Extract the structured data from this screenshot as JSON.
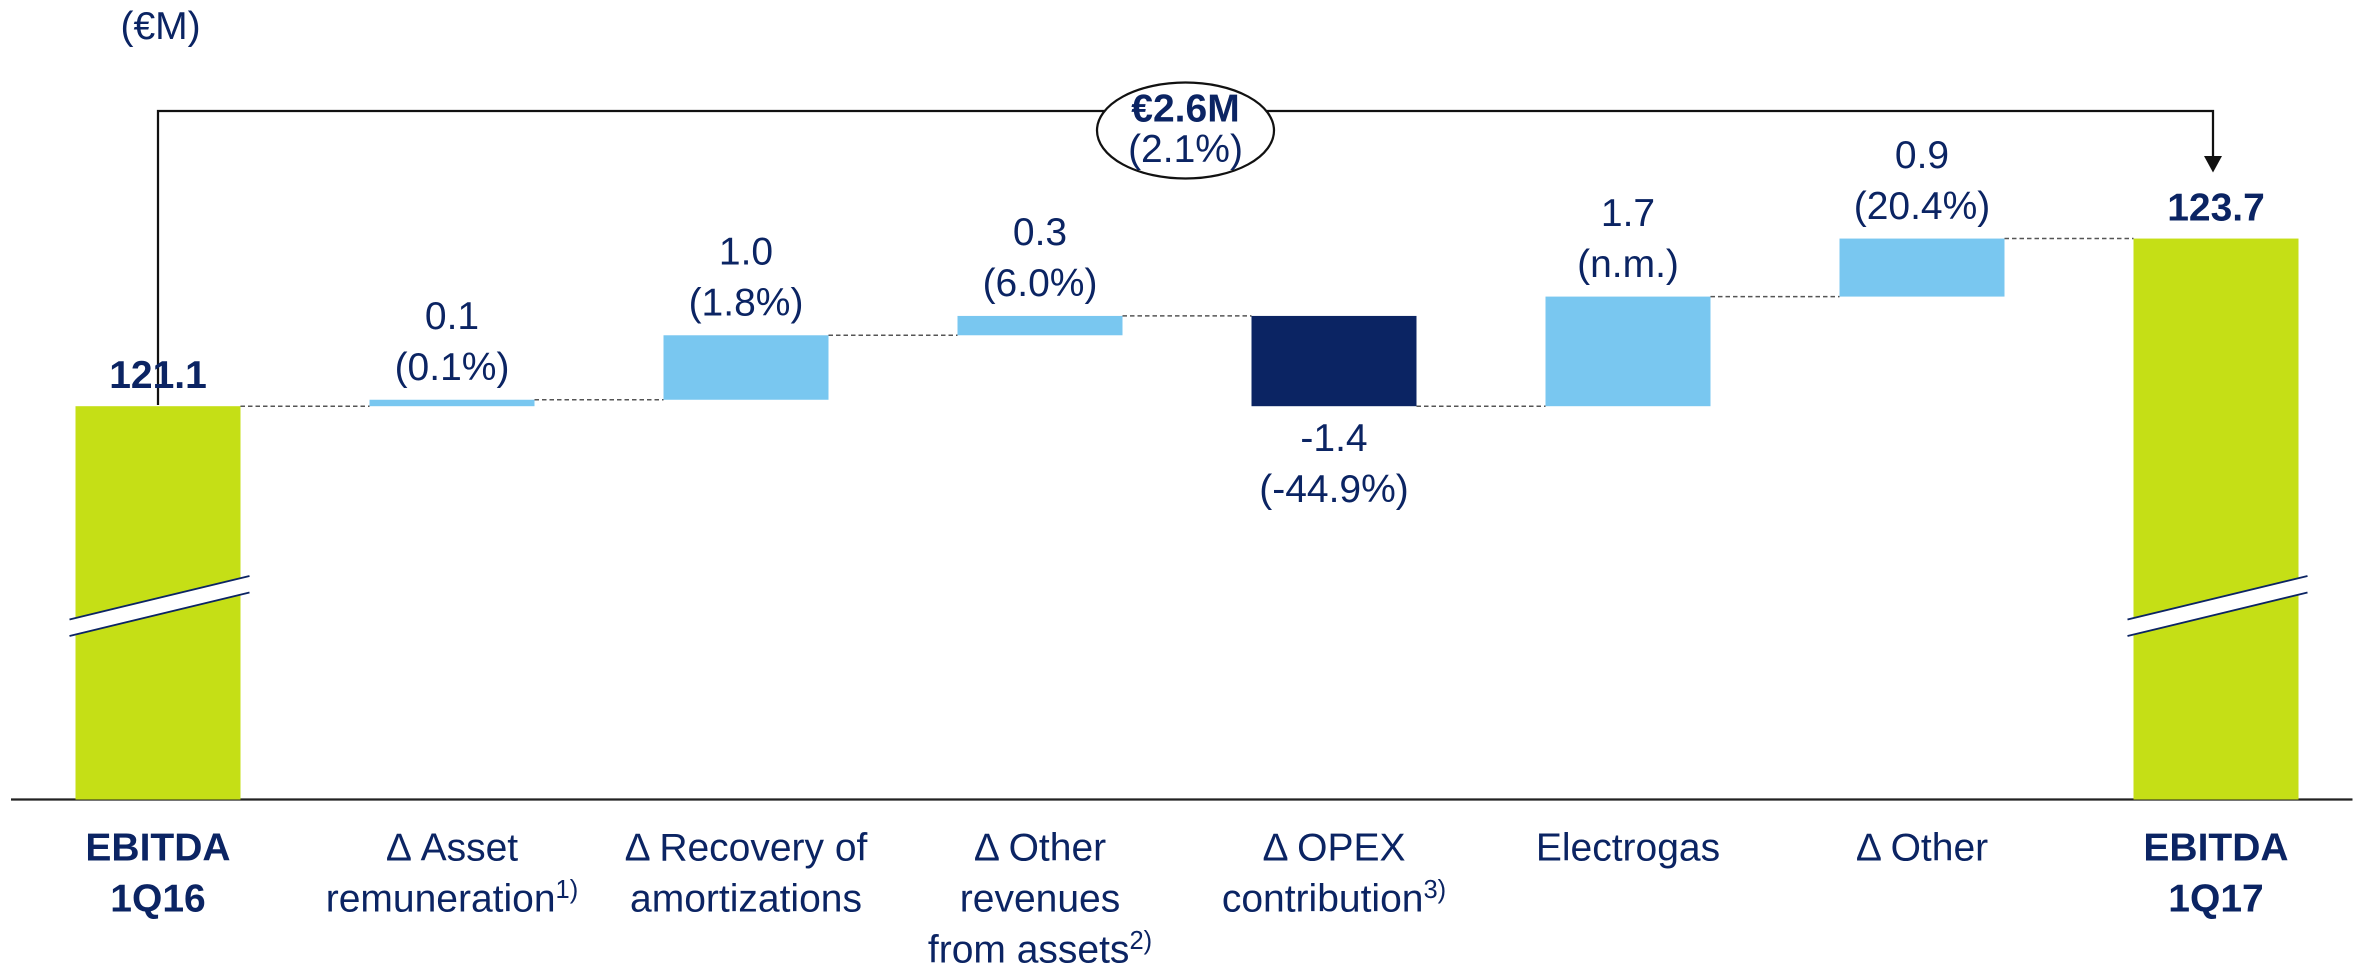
{
  "chart_data": {
    "type": "waterfall",
    "unit_label": "(€M)",
    "categories": [
      [
        "EBITDA",
        "1Q16"
      ],
      [
        "Δ Asset",
        "remuneration"
      ],
      [
        "Δ Recovery of",
        "amortizations"
      ],
      [
        "Δ Other",
        "revenues",
        "from assets"
      ],
      [
        "Δ OPEX",
        "contribution"
      ],
      [
        "Electrogas"
      ],
      [
        "Δ Other"
      ],
      [
        "EBITDA",
        "1Q17"
      ]
    ],
    "footnotes": [
      null,
      "1)",
      null,
      "2)",
      "3)",
      null,
      null,
      null
    ],
    "measure": [
      "absolute",
      "relative",
      "relative",
      "relative",
      "relative",
      "relative",
      "relative",
      "absolute"
    ],
    "values": [
      121.1,
      0.1,
      1.0,
      0.3,
      -1.4,
      1.7,
      0.9,
      123.7
    ],
    "value_labels": [
      "121.1",
      "0.1",
      "1.0",
      "0.3",
      "-1.4",
      "1.7",
      "0.9",
      "123.7"
    ],
    "pct_labels": [
      null,
      "(0.1%)",
      "(1.8%)",
      "(6.0%)",
      "(-44.9%)",
      "(n.m.)",
      "(20.4%)",
      null
    ],
    "total_change_label": "€2.6M",
    "total_change_pct_label": "(2.1%)",
    "ylim": [
      115,
      127.4
    ],
    "axis_break": true,
    "colors": {
      "total": "#c5df16",
      "increase": "#79c7f0",
      "decrease": "#0b2463"
    }
  }
}
